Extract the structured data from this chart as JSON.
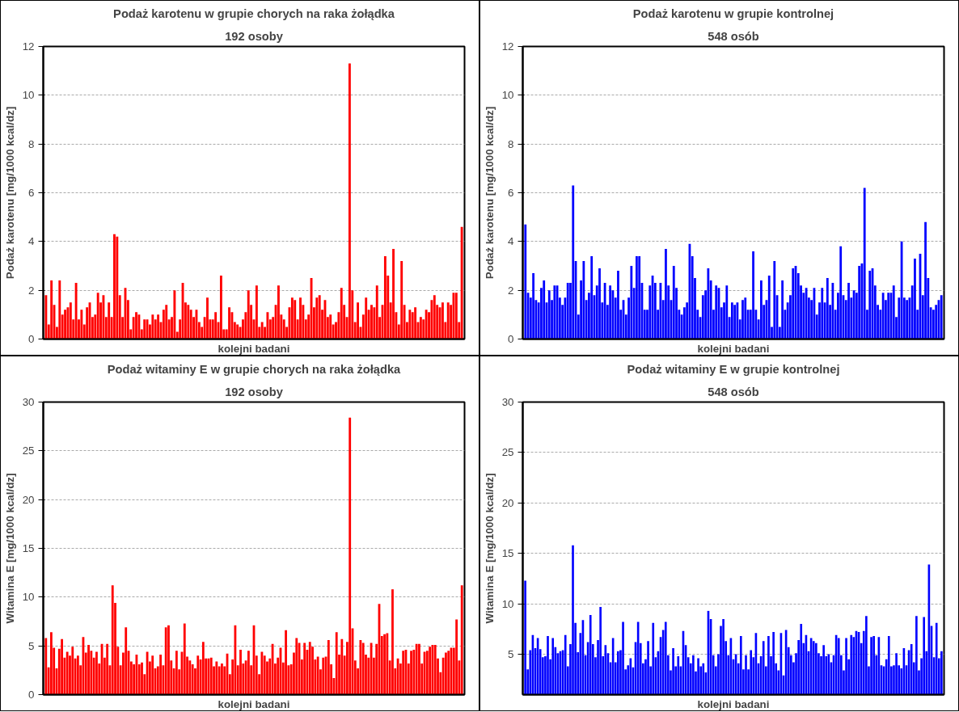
{
  "chart_data": [
    {
      "type": "bar",
      "title": "Podaż karotenu w grupie chorych na raka żołądka",
      "subtitle": "192 osoby",
      "xlabel": "kolejni badani",
      "ylabel": "Podaż karotenu [mg/1000 kcal/dz]",
      "color": "#ff0000",
      "ylim": [
        0,
        12
      ],
      "yticks": [
        0,
        2,
        4,
        6,
        8,
        10,
        12
      ],
      "grid": "y",
      "tick_labels": "y",
      "categories": [
        null,
        null,
        null,
        null,
        null,
        null,
        null,
        null,
        null,
        null,
        null,
        null,
        null,
        null,
        null,
        null,
        null,
        null,
        null,
        null,
        null,
        null,
        null,
        null,
        null,
        null,
        null,
        null,
        null,
        null,
        null,
        null,
        null,
        null,
        null,
        null,
        null,
        null,
        null,
        null,
        null,
        null,
        null,
        null,
        null,
        null,
        null,
        null,
        null,
        null,
        null,
        null,
        null,
        null,
        null,
        null,
        null,
        null,
        null,
        null,
        null,
        null,
        null,
        null,
        null,
        null,
        null,
        null,
        null,
        null,
        null,
        null,
        null,
        null,
        null,
        null,
        null,
        null,
        null,
        null,
        null,
        null,
        null,
        null,
        null,
        null,
        null,
        null,
        null,
        null,
        null,
        null,
        null,
        null,
        null,
        null,
        null,
        null,
        null,
        null,
        null,
        null,
        null,
        null,
        null,
        null,
        null,
        null,
        null,
        null,
        null,
        null,
        null,
        null,
        null,
        null,
        null,
        null,
        null,
        null,
        null,
        null,
        null,
        null,
        null,
        null,
        null,
        null,
        null,
        null,
        null,
        null,
        null,
        null,
        null,
        null,
        null,
        null,
        null,
        null,
        null,
        null,
        null,
        null,
        null,
        null,
        null,
        null,
        null,
        null,
        null,
        null,
        null
      ],
      "values": [
        1.8,
        0.6,
        2.4,
        1.4,
        0.5,
        2.4,
        1.0,
        1.2,
        1.3,
        1.5,
        0.8,
        2.3,
        0.8,
        1.2,
        0.6,
        1.3,
        1.5,
        0.9,
        1.0,
        1.9,
        1.5,
        1.8,
        0.9,
        1.5,
        0.9,
        4.3,
        4.2,
        1.8,
        0.9,
        2.1,
        1.6,
        0.4,
        0.9,
        1.1,
        1.0,
        0.4,
        0.8,
        0.8,
        0.6,
        1.0,
        0.8,
        1.0,
        0.7,
        1.2,
        1.4,
        0.8,
        0.9,
        2.0,
        0.3,
        0.8,
        2.3,
        1.5,
        1.4,
        1.2,
        0.9,
        1.2,
        0.7,
        0.5,
        0.9,
        1.7,
        0.8,
        0.8,
        1.1,
        0.7,
        2.6,
        0.4,
        0.4,
        1.3,
        1.1,
        0.7,
        0.6,
        0.5,
        0.8,
        1.1,
        2.0,
        1.4,
        0.8,
        2.2,
        0.5,
        0.7,
        0.5,
        1.1,
        0.8,
        0.9,
        1.4,
        2.2,
        1.0,
        0.8,
        0.5,
        1.3,
        1.7,
        1.6,
        0.8,
        1.7,
        1.4,
        0.8,
        1.0,
        2.5,
        1.3,
        1.7,
        1.8,
        1.2,
        1.6,
        0.9,
        1.0,
        0.6,
        0.7,
        1.1,
        2.1,
        1.4,
        0.9,
        11.3,
        2.0,
        0.7,
        1.5,
        0.5,
        1.0,
        1.7,
        1.2,
        1.4,
        1.3,
        2.2,
        0.9,
        1.4,
        3.4,
        2.6,
        1.5,
        3.7,
        1.1,
        0.6,
        3.2,
        1.4,
        0.7,
        1.2,
        1.1,
        1.3,
        0.7,
        0.9,
        0.8,
        1.2,
        1.1,
        1.6,
        1.8,
        1.4,
        1.3,
        1.5,
        0.7,
        1.5,
        1.4,
        1.9,
        1.9,
        0.7,
        4.6
      ]
    },
    {
      "type": "bar",
      "title": "Podaż karotenu w grupie kontrolnej",
      "subtitle": "548 osób",
      "xlabel": "kolejni badani",
      "ylabel": "Podaż karotenu [mg/1000 kcal/dz]",
      "color": "#0000ff",
      "ylim": [
        0,
        12
      ],
      "yticks": [
        0,
        2,
        4,
        6,
        8,
        10,
        12
      ],
      "grid": "y",
      "tick_labels": "y",
      "categories": [
        null,
        null,
        null,
        null,
        null,
        null,
        null,
        null,
        null,
        null,
        null,
        null,
        null,
        null,
        null,
        null,
        null,
        null,
        null,
        null,
        null,
        null,
        null,
        null,
        null,
        null,
        null,
        null,
        null,
        null,
        null,
        null,
        null,
        null,
        null,
        null,
        null,
        null,
        null,
        null,
        null,
        null,
        null,
        null,
        null,
        null,
        null,
        null,
        null,
        null,
        null,
        null,
        null,
        null,
        null,
        null,
        null,
        null,
        null,
        null,
        null,
        null,
        null,
        null,
        null,
        null,
        null,
        null,
        null,
        null,
        null,
        null,
        null,
        null,
        null,
        null,
        null,
        null,
        null,
        null,
        null,
        null,
        null,
        null,
        null,
        null,
        null,
        null,
        null,
        null,
        null,
        null,
        null,
        null,
        null,
        null,
        null,
        null,
        null,
        null,
        null,
        null,
        null,
        null,
        null,
        null,
        null,
        null,
        null,
        null,
        null,
        null,
        null,
        null,
        null,
        null,
        null,
        null,
        null,
        null,
        null,
        null,
        null,
        null,
        null,
        null,
        null,
        null,
        null,
        null,
        null,
        null,
        null,
        null,
        null,
        null,
        null,
        null,
        null,
        null,
        null,
        null,
        null,
        null,
        null,
        null,
        null,
        null,
        null,
        null,
        null,
        null,
        null,
        null,
        null,
        null,
        null,
        null
      ],
      "values": [
        4.7,
        1.9,
        1.7,
        2.7,
        1.6,
        1.5,
        2.1,
        2.4,
        1.5,
        2.0,
        1.6,
        2.2,
        2.2,
        1.7,
        1.4,
        1.7,
        2.3,
        2.3,
        6.3,
        3.2,
        1.0,
        2.4,
        3.2,
        1.6,
        1.9,
        3.4,
        1.8,
        2.2,
        2.9,
        1.5,
        2.3,
        1.4,
        2.2,
        2.0,
        1.7,
        2.8,
        1.2,
        1.6,
        1.0,
        1.7,
        3.0,
        2.1,
        3.4,
        3.4,
        2.3,
        1.2,
        1.2,
        2.2,
        2.6,
        2.3,
        1.2,
        2.3,
        1.6,
        3.7,
        2.2,
        1.6,
        3.0,
        2.1,
        1.2,
        1.0,
        1.3,
        1.5,
        3.9,
        3.4,
        2.5,
        1.2,
        0.9,
        1.8,
        2.0,
        2.9,
        2.4,
        1.2,
        2.2,
        2.1,
        1.3,
        1.5,
        2.2,
        0.9,
        1.5,
        1.4,
        1.5,
        0.8,
        1.6,
        1.7,
        1.2,
        1.2,
        3.6,
        1.2,
        0.8,
        2.4,
        1.4,
        1.6,
        2.6,
        0.5,
        3.2,
        1.8,
        0.5,
        2.4,
        1.2,
        1.5,
        1.8,
        2.9,
        3.0,
        2.7,
        2.2,
        1.9,
        2.1,
        1.7,
        1.6,
        2.1,
        1.0,
        1.5,
        2.1,
        1.5,
        2.5,
        1.4,
        2.3,
        1.2,
        1.9,
        3.8,
        1.8,
        1.6,
        2.3,
        1.7,
        2.0,
        1.9,
        3.0,
        3.1,
        6.2,
        1.2,
        2.8,
        2.9,
        2.2,
        1.4,
        1.2,
        1.9,
        1.6,
        1.9,
        1.9,
        2.2,
        0.9,
        1.7,
        4.0,
        1.7,
        1.6,
        1.7,
        2.2,
        3.3,
        1.2,
        3.5,
        1.8,
        4.8,
        2.5,
        1.3,
        1.2,
        1.4,
        1.6,
        1.8
      ]
    },
    {
      "type": "bar",
      "title": "Podaż witaminy E w grupie chorych na raka żołądka",
      "subtitle": "192 osoby",
      "xlabel": "kolejni badani",
      "ylabel": "Witamina E [mg/1000 kcal/dz]",
      "color": "#ff0000",
      "ylim": [
        0,
        30
      ],
      "yticks": [
        0,
        5,
        10,
        15,
        20,
        25,
        30
      ],
      "grid": "y",
      "tick_labels": "y",
      "categories": [
        null,
        null,
        null,
        null,
        null,
        null,
        null,
        null,
        null,
        null,
        null,
        null,
        null,
        null,
        null,
        null,
        null,
        null,
        null,
        null,
        null,
        null,
        null,
        null,
        null,
        null,
        null,
        null,
        null,
        null,
        null,
        null,
        null,
        null,
        null,
        null,
        null,
        null,
        null,
        null,
        null,
        null,
        null,
        null,
        null,
        null,
        null,
        null,
        null,
        null,
        null,
        null,
        null,
        null,
        null,
        null,
        null,
        null,
        null,
        null,
        null,
        null,
        null,
        null,
        null,
        null,
        null,
        null,
        null,
        null,
        null,
        null,
        null,
        null,
        null,
        null,
        null,
        null,
        null,
        null,
        null,
        null,
        null,
        null,
        null,
        null,
        null,
        null,
        null,
        null,
        null,
        null,
        null,
        null,
        null,
        null,
        null,
        null,
        null,
        null,
        null,
        null,
        null,
        null,
        null,
        null,
        null,
        null,
        null,
        null,
        null,
        null,
        null,
        null,
        null,
        null,
        null,
        null,
        null,
        null,
        null,
        null,
        null,
        null,
        null,
        null,
        null,
        null,
        null,
        null,
        null,
        null,
        null,
        null,
        null,
        null,
        null,
        null,
        null,
        null,
        null,
        null,
        null,
        null,
        null,
        null,
        null,
        null,
        null,
        null,
        null,
        null,
        null,
        null,
        null,
        null,
        null
      ],
      "values": [
        5.8,
        2.8,
        6.4,
        4.8,
        2.7,
        4.7,
        5.7,
        3.8,
        4.4,
        4.0,
        4.9,
        3.7,
        4.0,
        3.0,
        5.9,
        4.3,
        5.1,
        4.5,
        3.8,
        4.4,
        3.2,
        5.2,
        3.8,
        5.2,
        3.0,
        11.2,
        9.4,
        4.9,
        3.0,
        4.3,
        6.9,
        4.5,
        3.4,
        3.1,
        4.1,
        3.1,
        3.3,
        2.1,
        4.4,
        3.4,
        4.0,
        2.7,
        2.9,
        4.1,
        3.0,
        6.9,
        7.1,
        3.5,
        2.7,
        4.5,
        2.6,
        4.4,
        7.3,
        3.9,
        3.5,
        3.1,
        2.7,
        4.0,
        3.6,
        5.4,
        3.7,
        3.7,
        3.8,
        2.9,
        3.4,
        2.9,
        3.2,
        2.9,
        4.2,
        2.1,
        3.6,
        7.1,
        3.0,
        4.6,
        3.2,
        3.5,
        4.5,
        3.0,
        7.1,
        4.0,
        2.1,
        4.4,
        4.0,
        3.4,
        3.7,
        5.2,
        3.2,
        3.8,
        4.8,
        3.3,
        6.6,
        3.0,
        3.1,
        4.3,
        5.8,
        5.3,
        3.6,
        5.3,
        4.6,
        5.4,
        4.9,
        3.6,
        3.9,
        2.6,
        3.8,
        3.9,
        5.6,
        3.1,
        1.7,
        6.4,
        4.1,
        5.7,
        4.0,
        5.4,
        28.4,
        6.8,
        3.5,
        2.7,
        5.6,
        5.3,
        4.1,
        3.8,
        5.3,
        3.8,
        5.2,
        9.3,
        6.0,
        6.2,
        6.3,
        3.5,
        10.8,
        2.7,
        3.7,
        3.2,
        4.5,
        4.6,
        3.2,
        4.5,
        4.6,
        5.2,
        5.2,
        3.2,
        4.4,
        4.5,
        4.9,
        5.1,
        5.1,
        3.7,
        2.3,
        3.8,
        4.3,
        4.5,
        4.8,
        4.8,
        7.7,
        3.5,
        11.2
      ]
    },
    {
      "type": "bar",
      "title": "Podaż witaminy E w grupie kontrolnej",
      "subtitle": "548 osób",
      "xlabel": "kolejni badani",
      "ylabel": "Witamina E [mg/1000 kcal/dz]",
      "color": "#0000ff",
      "ylim": [
        1,
        30
      ],
      "yticks": [
        5,
        10,
        15,
        20,
        25,
        30
      ],
      "grid": "y",
      "tick_labels": "y",
      "categories": [
        null,
        null,
        null,
        null,
        null,
        null,
        null,
        null,
        null,
        null,
        null,
        null,
        null,
        null,
        null,
        null,
        null,
        null,
        null,
        null,
        null,
        null,
        null,
        null,
        null,
        null,
        null,
        null,
        null,
        null,
        null,
        null,
        null,
        null,
        null,
        null,
        null,
        null,
        null,
        null,
        null,
        null,
        null,
        null,
        null,
        null,
        null,
        null,
        null,
        null,
        null,
        null,
        null,
        null,
        null,
        null,
        null,
        null,
        null,
        null,
        null,
        null,
        null,
        null,
        null,
        null,
        null,
        null,
        null,
        null,
        null,
        null,
        null,
        null,
        null,
        null,
        null,
        null,
        null,
        null,
        null,
        null,
        null,
        null,
        null,
        null,
        null,
        null,
        null,
        null,
        null,
        null,
        null,
        null,
        null,
        null,
        null,
        null,
        null,
        null,
        null,
        null,
        null,
        null,
        null,
        null,
        null,
        null,
        null,
        null,
        null,
        null,
        null,
        null,
        null,
        null,
        null,
        null,
        null,
        null,
        null,
        null,
        null,
        null,
        null,
        null,
        null,
        null,
        null,
        null,
        null,
        null,
        null,
        null,
        null,
        null,
        null,
        null,
        null,
        null,
        null,
        null,
        null,
        null,
        null,
        null,
        null,
        null,
        null,
        null,
        null,
        null,
        null,
        null,
        null,
        null,
        null,
        null,
        null,
        null,
        null,
        null,
        null,
        null,
        null,
        null,
        null
      ],
      "values": [
        12.3,
        3.5,
        5.4,
        6.9,
        5.6,
        6.6,
        5.5,
        4.7,
        4.8,
        6.8,
        4.5,
        6.6,
        5.7,
        5.1,
        5.3,
        5.4,
        6.9,
        3.8,
        6.0,
        15.8,
        8.1,
        5.2,
        7.1,
        8.4,
        4.9,
        6.2,
        8.9,
        6.0,
        4.7,
        6.4,
        9.7,
        4.8,
        5.9,
        5.1,
        4.2,
        6.6,
        4.2,
        5.3,
        5.4,
        8.2,
        3.5,
        3.9,
        4.6,
        3.7,
        6.2,
        8.2,
        6.1,
        4.1,
        4.5,
        6.3,
        3.8,
        8.1,
        4.7,
        5.3,
        6.7,
        7.4,
        8.2,
        4.9,
        3.4,
        5.6,
        3.8,
        4.8,
        3.8,
        7.3,
        5.9,
        4.7,
        4.1,
        4.9,
        3.3,
        4.6,
        3.8,
        4.1,
        3.2,
        9.3,
        8.5,
        4.9,
        3.8,
        5.0,
        7.8,
        8.5,
        6.3,
        4.9,
        6.6,
        4.5,
        5.0,
        4.1,
        6.8,
        3.5,
        4.9,
        3.5,
        5.4,
        4.7,
        7.1,
        4.1,
        4.8,
        6.3,
        3.8,
        6.8,
        4.8,
        7.2,
        4.1,
        3.4,
        7.1,
        2.9,
        7.4,
        5.7,
        4.9,
        4.2,
        5.1,
        6.4,
        8.0,
        6.1,
        6.9,
        5.3,
        6.6,
        6.3,
        6.1,
        5.1,
        4.8,
        5.9,
        4.8,
        5.0,
        4.2,
        4.9,
        6.9,
        6.6,
        4.9,
        3.4,
        6.6,
        4.5,
        6.9,
        6.7,
        7.3,
        7.2,
        6.1,
        7.3,
        8.8,
        3.8,
        6.7,
        6.8,
        4.9,
        6.7,
        3.9,
        3.8,
        4.5,
        6.8,
        3.8,
        3.9,
        5.1,
        3.9,
        3.6,
        5.6,
        3.9,
        5.4,
        6.0,
        4.2,
        8.8,
        3.4,
        4.6,
        8.7,
        5.3,
        13.9,
        7.8,
        4.7,
        8.1,
        4.6,
        5.3
      ]
    }
  ]
}
